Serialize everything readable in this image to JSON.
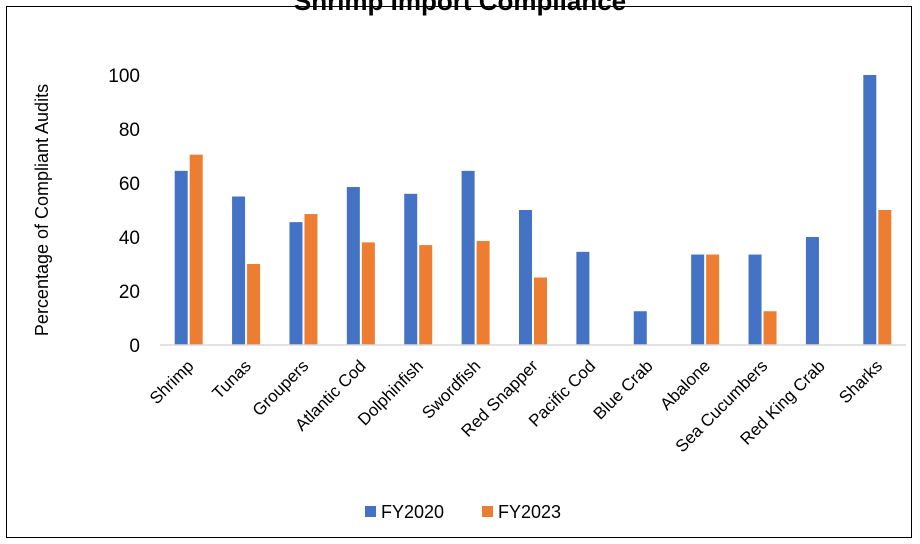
{
  "chart_data": {
    "type": "bar",
    "title": "Shrimp Import Compliance",
    "ylabel": "Percentage of Compliant Audits",
    "xlabel": "",
    "ylim": [
      0,
      100
    ],
    "yticks": [
      0,
      20,
      40,
      60,
      80,
      100
    ],
    "grid": false,
    "legend_position": "bottom",
    "categories": [
      "Shrimp",
      "Tunas",
      "Groupers",
      "Atlantic Cod",
      "Dolphinfish",
      "Swordfish",
      "Red Snapper",
      "Pacific Cod",
      "Blue Crab",
      "Abalone",
      "Sea Cucumbers",
      "Red King Crab",
      "Sharks"
    ],
    "series": [
      {
        "name": "FY2020",
        "color": "#4472C4",
        "values": [
          64.5,
          55,
          45.5,
          58.5,
          56,
          64.5,
          50,
          34.5,
          12.5,
          33.5,
          33.5,
          40,
          100
        ]
      },
      {
        "name": "FY2023",
        "color": "#ED7D31",
        "values": [
          70.5,
          30,
          48.5,
          38,
          37,
          38.5,
          25,
          0,
          0,
          33.5,
          12.5,
          0,
          50
        ]
      }
    ]
  }
}
